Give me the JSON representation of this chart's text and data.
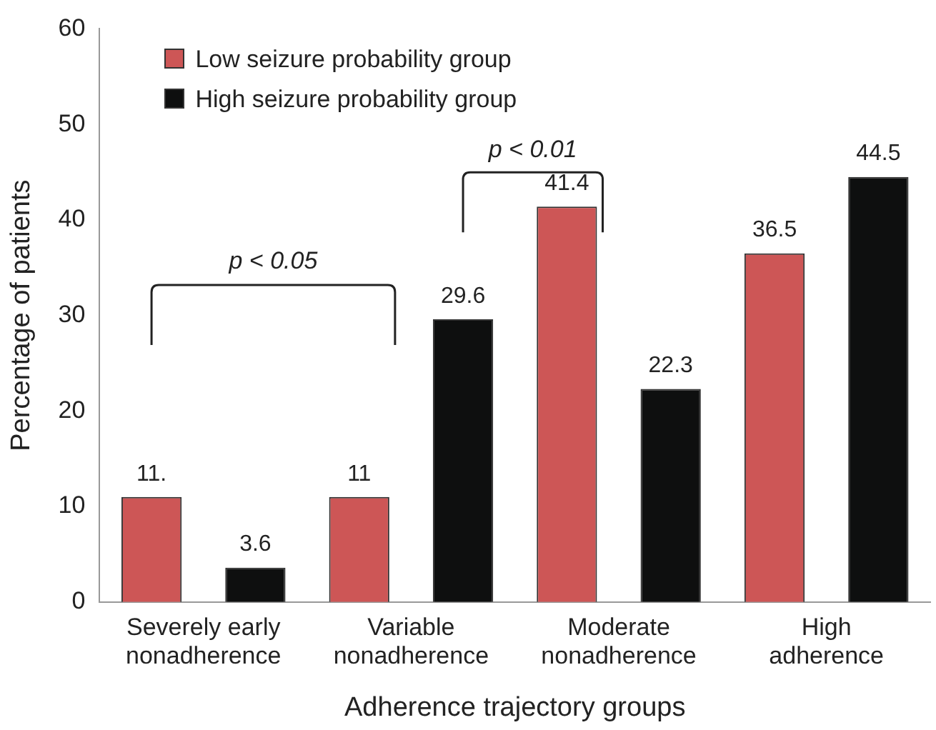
{
  "chart_data": {
    "type": "bar",
    "xlabel": "Adherence trajectory groups",
    "ylabel": "Percentage of patients",
    "categories": [
      "Severely early nonadherence",
      "Variable nonadherence",
      "Moderate nonadherence",
      "High adherence"
    ],
    "series": [
      {
        "name": "Low seizure probability group",
        "color": "#cd5656",
        "values": [
          11,
          11,
          41.4,
          36.5
        ],
        "value_labels": [
          "11.",
          "11",
          "41.4",
          "36.5"
        ]
      },
      {
        "name": "High seizure probability group",
        "color": "#0e0f0f",
        "values": [
          3.6,
          29.6,
          22.3,
          44.5
        ],
        "value_labels": [
          "3.6",
          "29.6",
          "22.3",
          "44.5"
        ]
      }
    ],
    "ylim": [
      0,
      60
    ],
    "yticks": [
      0,
      10,
      20,
      30,
      40,
      50,
      60
    ],
    "grid": false,
    "legend": "top left",
    "annotations": [
      "p < 0.05",
      "p < 0.01"
    ]
  }
}
